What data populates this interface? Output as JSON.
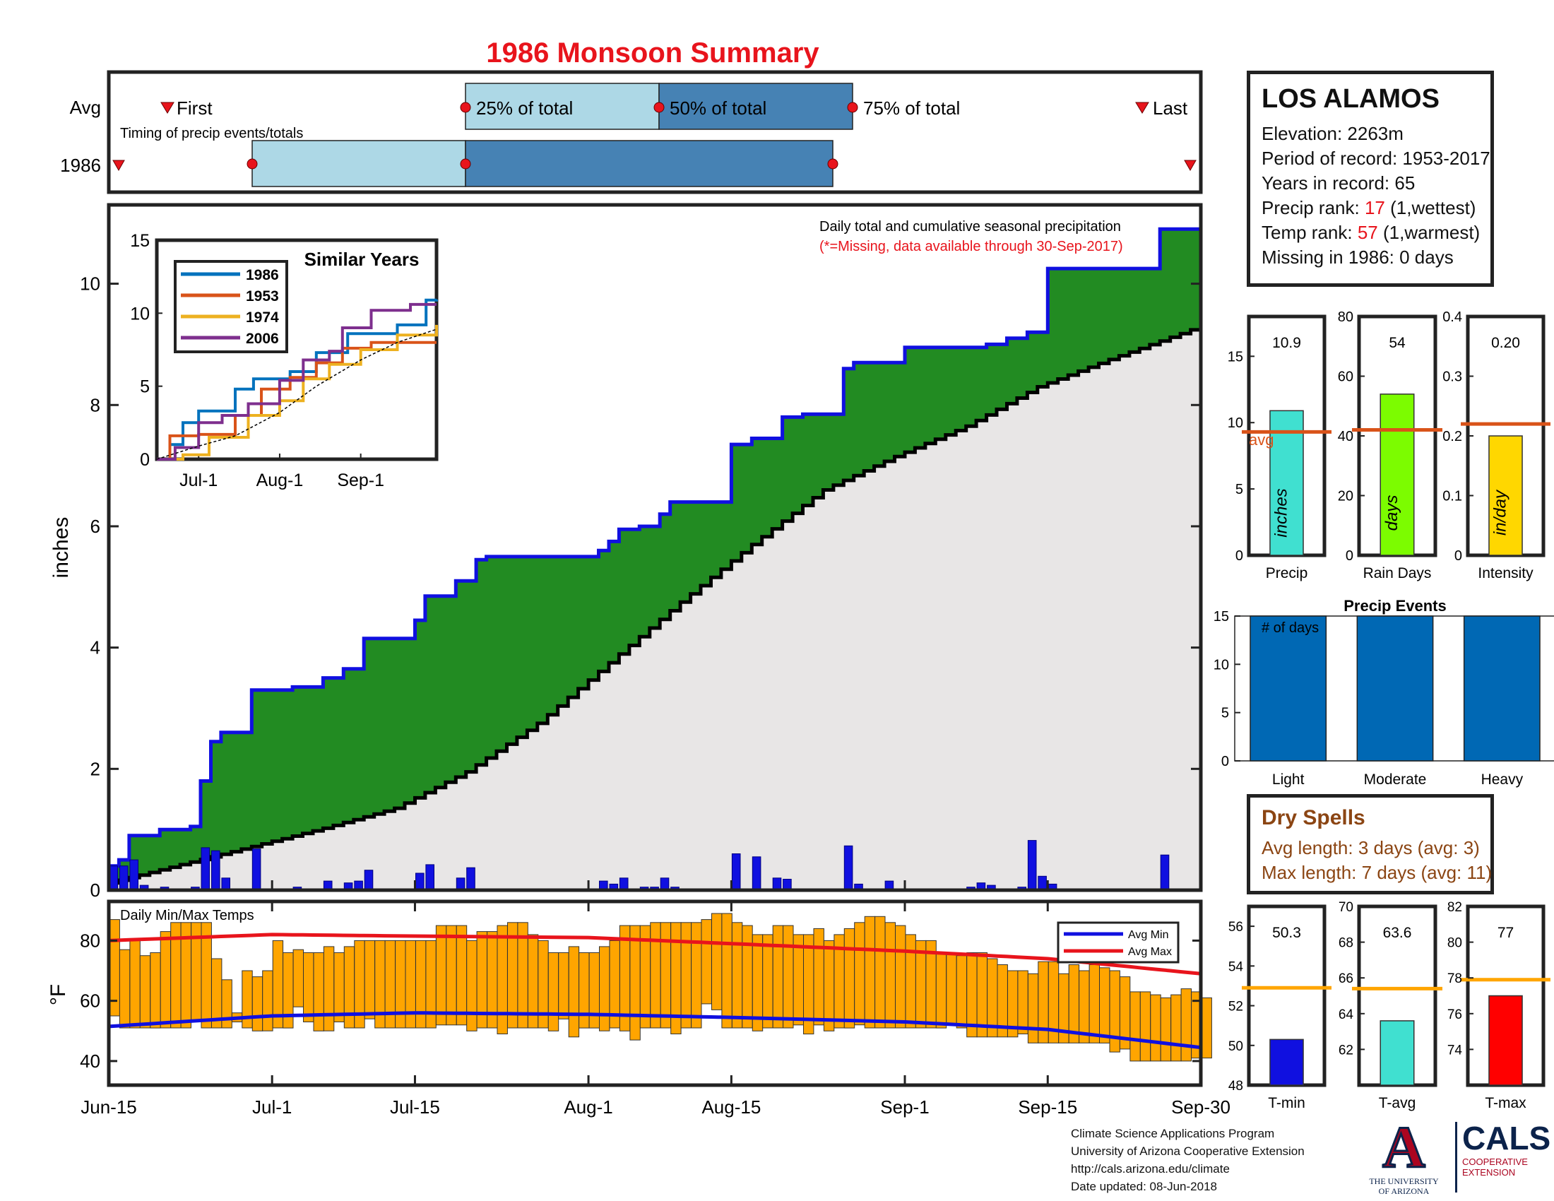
{
  "title": "1986 Monsoon Summary",
  "timing": {
    "avg_label": "Avg",
    "year_label": "1986",
    "first_label": "First",
    "last_label": "Last",
    "note": "Timing of precip events/totals",
    "pct25_label": "25% of total",
    "pct50_label": "50% of total",
    "pct75_label": "75% of total",
    "avg_markers": {
      "first": "Jun-22",
      "p25": "Jul-22",
      "p50": "Aug-07",
      "p75": "Aug-23",
      "last": "Sep-28"
    },
    "year_markers": {
      "first": "Jun-15",
      "p25": "Jun-29",
      "p50": "Jul-22",
      "p75": "Aug-25",
      "last": "Sep-30"
    },
    "colors": {
      "light": "#add8e6",
      "dark": "#4682b4",
      "marker": "#e8141c"
    }
  },
  "station": {
    "name": "LOS ALAMOS",
    "elevation": "Elevation: 2263m",
    "period": "Period of record: 1953-2017",
    "years": "Years in record: 65",
    "precip_rank_prefix": "Precip rank: ",
    "precip_rank_value": "17",
    "precip_rank_suffix": " (1,wettest)",
    "temp_rank_prefix": "Temp rank: ",
    "temp_rank_value": "57",
    "temp_rank_suffix": " (1,warmest)",
    "missing": "Missing in 1986: 0 days"
  },
  "main_chart": {
    "ylabel": "inches",
    "note_line1": "Daily total and cumulative seasonal precipitation",
    "note_line2": "(*=Missing, data available through 30-Sep-2017)",
    "y_ticks": [
      "0",
      "2",
      "4",
      "6",
      "8",
      "10"
    ],
    "x_ticks": [
      "Jun-15",
      "Jul-1",
      "Jul-15",
      "Aug-1",
      "Aug-15",
      "Sep-1",
      "Sep-15",
      "Sep-30"
    ],
    "colors": {
      "cumulative_1986": "#1010e0",
      "above_avg_fill": "#228b22",
      "avg_fill": "#e8e6e6",
      "avg_line": "#000000",
      "daily": "#1010e0"
    }
  },
  "inset": {
    "title": "Similar Years",
    "y_ticks": [
      "0",
      "5",
      "10",
      "15"
    ],
    "x_ticks": [
      "Jul-1",
      "Aug-1",
      "Sep-1"
    ],
    "legend": [
      {
        "name": "1986",
        "color": "#0072bd"
      },
      {
        "name": "1953",
        "color": "#d95319"
      },
      {
        "name": "1974",
        "color": "#edb120"
      },
      {
        "name": "2006",
        "color": "#7e2f8e"
      }
    ]
  },
  "temp_chart": {
    "title": "Daily Min/Max Temps",
    "ylabel": "°F",
    "y_ticks": [
      "40",
      "60",
      "80"
    ],
    "legend_min": "Avg Min",
    "legend_max": "Avg Max",
    "colors": {
      "bars": "#ffa500",
      "avg_min": "#1010e0",
      "avg_max": "#e8141c"
    }
  },
  "small_bars": {
    "precip": {
      "label": "Precip",
      "value": "10.9",
      "unit": "inches",
      "avg_label": "avg",
      "y_ticks": [
        "0",
        "5",
        "10",
        "15"
      ],
      "color": "#40e0d0"
    },
    "rain_days": {
      "label": "Rain Days",
      "value": "54",
      "unit": "days",
      "y_ticks": [
        "0",
        "20",
        "40",
        "60",
        "80"
      ],
      "color": "#7cfc00"
    },
    "intensity": {
      "label": "Intensity",
      "value": "0.20",
      "unit": "in/day",
      "y_ticks": [
        "0",
        "0.1",
        "0.2",
        "0.3",
        "0.4"
      ],
      "color": "#ffd700"
    },
    "avg_line_color": "#d95319"
  },
  "events": {
    "title": "Precip Events",
    "note": "# of days",
    "y_ticks": [
      "0",
      "5",
      "10",
      "15"
    ],
    "categories": [
      "Light",
      "Moderate",
      "Heavy"
    ],
    "color": "#0068b4"
  },
  "dry_spells": {
    "title": "Dry Spells",
    "avg_line": "Avg length: 3 days (avg: 3)",
    "max_line": "Max length: 7 days (avg: 11)"
  },
  "temp_bars": {
    "tmin": {
      "label": "T-min",
      "value": "50.3",
      "y_ticks": [
        "48",
        "50",
        "52",
        "54",
        "56"
      ],
      "color": "#1010e0"
    },
    "tavg": {
      "label": "T-avg",
      "value": "63.6",
      "y_ticks": [
        "62",
        "64",
        "66",
        "68",
        "70"
      ],
      "color": "#40e0d0"
    },
    "tmax": {
      "label": "T-max",
      "value": "77",
      "y_ticks": [
        "74",
        "76",
        "78",
        "80",
        "82"
      ],
      "color": "#ff0000"
    },
    "avg_line_color": "#ffa500"
  },
  "footer": {
    "line1": "Climate Science Applications Program",
    "line2": "University of Arizona Cooperative Extension",
    "line3": "http://cals.arizona.edu/climate",
    "line4": " Date updated: 08-Jun-2018",
    "ua_line1": "THE UNIVERSITY",
    "ua_line2": "OF ARIZONA",
    "cals": "CALS",
    "cals_line1": "COOPERATIVE",
    "cals_line2": "EXTENSION"
  },
  "chart_data": [
    {
      "type": "line",
      "title": "1986 Monsoon Summary",
      "ylabel": "inches",
      "ylim": [
        0,
        11.3
      ],
      "x_range": [
        "Jun-15",
        "Sep-30"
      ],
      "series": [
        {
          "name": "1986",
          "x": [
            "Jun-15",
            "Jun-16",
            "Jun-17",
            "Jun-20",
            "Jun-23",
            "Jun-24",
            "Jun-25",
            "Jun-26",
            "Jun-29",
            "Jul-03",
            "Jul-06",
            "Jul-08",
            "Jul-10",
            "Jul-15",
            "Jul-16",
            "Jul-19",
            "Jul-21",
            "Jul-22",
            "Jul-23",
            "Jul-25",
            "Aug-01",
            "Aug-02",
            "Aug-03",
            "Aug-04",
            "Aug-06",
            "Aug-08",
            "Aug-09",
            "Aug-15",
            "Aug-17",
            "Aug-20",
            "Aug-22",
            "Aug-26",
            "Aug-27",
            "Sep-01",
            "Sep-09",
            "Sep-11",
            "Sep-13",
            "Sep-14",
            "Sep-15",
            "Sep-26",
            "Sep-30"
          ],
          "y": [
            0.4,
            0.5,
            0.9,
            1.0,
            1.05,
            1.8,
            2.45,
            2.6,
            3.3,
            3.35,
            3.5,
            3.65,
            4.15,
            4.45,
            4.85,
            5.1,
            5.45,
            5.5,
            5.5,
            5.5,
            5.5,
            5.6,
            5.75,
            5.95,
            6.0,
            6.2,
            6.4,
            7.35,
            7.45,
            7.8,
            7.85,
            8.6,
            8.7,
            8.95,
            9.0,
            9.1,
            9.2,
            9.2,
            10.25,
            10.9,
            10.95
          ]
        },
        {
          "name": "Avg",
          "x": [
            "Jun-15",
            "Jun-22",
            "Jun-29",
            "Jul-06",
            "Jul-13",
            "Jul-20",
            "Jul-27",
            "Aug-03",
            "Aug-10",
            "Aug-17",
            "Aug-24",
            "Aug-31",
            "Sep-07",
            "Sep-14",
            "Sep-21",
            "Sep-30"
          ],
          "y": [
            0.12,
            0.42,
            0.72,
            1.02,
            1.35,
            1.95,
            2.75,
            3.75,
            4.75,
            5.7,
            6.6,
            7.15,
            7.65,
            8.3,
            8.75,
            9.3
          ]
        }
      ]
    },
    {
      "type": "bar",
      "title": "Daily total",
      "x": [
        "Jun-15",
        "Jun-16",
        "Jun-17",
        "Jun-18",
        "Jun-20",
        "Jun-23",
        "Jun-24",
        "Jun-25",
        "Jun-26",
        "Jun-29",
        "Jul-03",
        "Jul-06",
        "Jul-08",
        "Jul-09",
        "Jul-10",
        "Jul-15",
        "Jul-16",
        "Jul-19",
        "Jul-20",
        "Aug-02",
        "Aug-03",
        "Aug-04",
        "Aug-06",
        "Aug-07",
        "Aug-08",
        "Aug-09",
        "Aug-15",
        "Aug-17",
        "Aug-19",
        "Aug-20",
        "Aug-26",
        "Aug-27",
        "Aug-30",
        "Sep-07",
        "Sep-08",
        "Sep-09",
        "Sep-12",
        "Sep-13",
        "Sep-14",
        "Sep-15",
        "Sep-26"
      ],
      "values": [
        0.4,
        0.4,
        0.5,
        0.08,
        0.05,
        0.05,
        0.7,
        0.65,
        0.2,
        0.68,
        0.05,
        0.15,
        0.12,
        0.15,
        0.33,
        0.28,
        0.42,
        0.2,
        0.37,
        0.15,
        0.1,
        0.2,
        0.05,
        0.05,
        0.2,
        0.05,
        0.6,
        0.55,
        0.2,
        0.18,
        0.73,
        0.1,
        0.15,
        0.05,
        0.12,
        0.08,
        0.05,
        0.82,
        0.23,
        0.1,
        0.58
      ]
    },
    {
      "type": "line",
      "title": "Similar Years",
      "ylim": [
        0,
        15
      ],
      "x_range": [
        "Jun-15",
        "Sep-30"
      ],
      "series": [
        {
          "name": "1986",
          "x": [
            "Jun-15",
            "Jun-20",
            "Jun-25",
            "Jul-01",
            "Jul-15",
            "Jul-22",
            "Aug-05",
            "Aug-15",
            "Aug-27",
            "Sep-15",
            "Sep-26",
            "Sep-30"
          ],
          "y": [
            0,
            1.0,
            2.5,
            3.3,
            4.8,
            5.5,
            6.0,
            7.3,
            8.6,
            9.2,
            10.9,
            10.95
          ]
        },
        {
          "name": "1953",
          "x": [
            "Jun-15",
            "Jun-20",
            "Jul-01",
            "Jul-15",
            "Jul-25",
            "Aug-05",
            "Aug-15",
            "Aug-25",
            "Sep-05",
            "Sep-30"
          ],
          "y": [
            0,
            1.6,
            1.7,
            3.0,
            4.8,
            5.6,
            6.6,
            7.6,
            8.0,
            8.0
          ]
        },
        {
          "name": "1974",
          "x": [
            "Jun-15",
            "Jun-25",
            "Jul-05",
            "Jul-20",
            "Aug-01",
            "Aug-10",
            "Aug-20",
            "Sep-01",
            "Sep-15",
            "Sep-30"
          ],
          "y": [
            0,
            0.3,
            1.5,
            3.0,
            4.0,
            5.5,
            6.5,
            7.5,
            8.5,
            9.2
          ]
        },
        {
          "name": "2006",
          "x": [
            "Jun-15",
            "Jun-22",
            "Jul-01",
            "Jul-10",
            "Jul-20",
            "Aug-01",
            "Aug-10",
            "Aug-20",
            "Aug-25",
            "Sep-05",
            "Sep-20",
            "Sep-30"
          ],
          "y": [
            0,
            0.8,
            2.5,
            3.0,
            3.8,
            5.4,
            6.8,
            7.4,
            9.0,
            10.2,
            10.6,
            10.6
          ]
        },
        {
          "name": "Avg",
          "x": [
            "Jun-15",
            "Jul-01",
            "Jul-15",
            "Aug-01",
            "Aug-15",
            "Sep-01",
            "Sep-15",
            "Sep-30"
          ],
          "y": [
            0,
            0.9,
            1.6,
            3.2,
            5.0,
            6.8,
            8.0,
            8.9
          ]
        }
      ]
    },
    {
      "type": "bar",
      "title": "Daily Min/Max Temps",
      "ylabel": "°F",
      "ylim": [
        32,
        93
      ],
      "note": "floating bars spanning daily min to daily max for each day Jun-15 through Sep-30",
      "daily_min": [
        55,
        51,
        51,
        51,
        51,
        51,
        51,
        51,
        53,
        51,
        51,
        51,
        53,
        51,
        50,
        50,
        51,
        51,
        58,
        53,
        50,
        50,
        53,
        51,
        51,
        54,
        51,
        51,
        51,
        51,
        51,
        51,
        52,
        52,
        52,
        50,
        51,
        51,
        49,
        51,
        51,
        51,
        51,
        50,
        54,
        48,
        51,
        51,
        50,
        51,
        50,
        47,
        51,
        51,
        51,
        49,
        51,
        51,
        59,
        57,
        51,
        51,
        51,
        50,
        51,
        51,
        51,
        52,
        49,
        52,
        50,
        51,
        51,
        52,
        51,
        51,
        51,
        51,
        51,
        51,
        51,
        51,
        52,
        51,
        48,
        48,
        48,
        48,
        48,
        49,
        46,
        46,
        46,
        46,
        46,
        46,
        46,
        46,
        43,
        44,
        40,
        40,
        40,
        40,
        40,
        40,
        41,
        41
      ],
      "daily_max": [
        87,
        77,
        80,
        75,
        76,
        83,
        86,
        86,
        86,
        86,
        74,
        67,
        56,
        70,
        68,
        70,
        80,
        76,
        77,
        76,
        76,
        78,
        76,
        78,
        80,
        80,
        80,
        80,
        80,
        80,
        80,
        80,
        85,
        85,
        85,
        80,
        83,
        83,
        85,
        86,
        86,
        82,
        80,
        76,
        76,
        78,
        76,
        76,
        78,
        80,
        85,
        85,
        85,
        86,
        86,
        86,
        86,
        86,
        87,
        89,
        89,
        86,
        85,
        82,
        82,
        85,
        85,
        82,
        82,
        84,
        80,
        82,
        84,
        86,
        88,
        88,
        86,
        85,
        82,
        80,
        80,
        76,
        76,
        75,
        76,
        76,
        74,
        72,
        70,
        70,
        69,
        73,
        73,
        69,
        72,
        70,
        72,
        71,
        70,
        68,
        63,
        63,
        62,
        61,
        62,
        64,
        63,
        61
      ],
      "series": [
        {
          "name": "Avg Min",
          "x": [
            "Jun-15",
            "Jul-01",
            "Jul-15",
            "Aug-01",
            "Aug-15",
            "Sep-01",
            "Sep-15",
            "Sep-30"
          ],
          "y": [
            51.5,
            55,
            56,
            55.5,
            54.5,
            53,
            50.5,
            44.5
          ]
        },
        {
          "name": "Avg Max",
          "x": [
            "Jun-15",
            "Jul-01",
            "Jul-15",
            "Aug-01",
            "Aug-15",
            "Sep-01",
            "Sep-15",
            "Sep-30"
          ],
          "y": [
            80,
            82,
            81.5,
            81,
            79,
            76.5,
            74,
            69
          ]
        }
      ]
    },
    {
      "type": "bar",
      "categories": [
        "Precip"
      ],
      "values": [
        10.9
      ],
      "avg": 9.3,
      "ylim": [
        0,
        18
      ]
    },
    {
      "type": "bar",
      "categories": [
        "Rain Days"
      ],
      "values": [
        54
      ],
      "avg": 42,
      "ylim": [
        0,
        80
      ]
    },
    {
      "type": "bar",
      "categories": [
        "Intensity"
      ],
      "values": [
        0.2
      ],
      "avg": 0.22,
      "ylim": [
        0,
        0.4
      ]
    },
    {
      "type": "bar",
      "title": "Precip Events",
      "categories": [
        "Light",
        "Moderate",
        "Heavy"
      ],
      "values": [
        15,
        15,
        15
      ],
      "ylim": [
        0,
        15
      ]
    },
    {
      "type": "bar",
      "categories": [
        "T-min"
      ],
      "values": [
        50.3
      ],
      "avg": 52.9,
      "ylim": [
        48,
        57
      ]
    },
    {
      "type": "bar",
      "categories": [
        "T-avg"
      ],
      "values": [
        63.6
      ],
      "avg": 65.4,
      "ylim": [
        60,
        70
      ]
    },
    {
      "type": "bar",
      "categories": [
        "T-max"
      ],
      "values": [
        77
      ],
      "avg": 77.9,
      "ylim": [
        72,
        82
      ]
    }
  ]
}
